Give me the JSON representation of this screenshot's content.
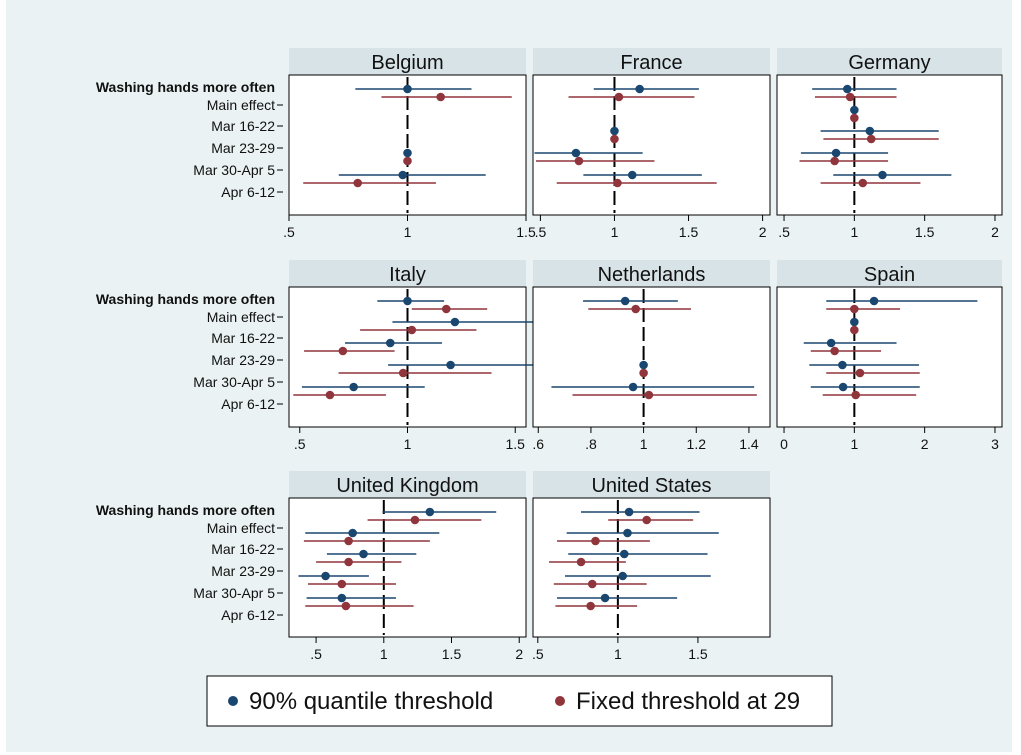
{
  "colors": {
    "background": "#eaf2f3",
    "plot_bg": "#ffffff",
    "title_bar": "#d8e3e8",
    "series_1": "#1a476f",
    "series_2": "#90353b",
    "reference_line": "#000000"
  },
  "chart_data": {
    "type": "scatter",
    "subtype": "coefficient-plot-small-multiples",
    "row_labels": [
      "Washing hands more often",
      "Main effect",
      "Mar 16-22",
      "Mar 23-29",
      "Mar 30-Apr 5",
      "Apr 6-12"
    ],
    "legend": {
      "position": "bottom",
      "entries": [
        "90% quantile threshold",
        "Fixed threshold at 29"
      ]
    },
    "panels": [
      {
        "title": "Belgium",
        "xlim": [
          0.5,
          1.5
        ],
        "ticks": [
          0.5,
          1,
          1.5
        ],
        "tick_labels": [
          ".5",
          "1",
          "1.5"
        ],
        "ref": 1,
        "series": [
          {
            "name": "90% quantile threshold",
            "points": [
              {
                "row": "Main effect",
                "est": 1.0,
                "lo": 0.78,
                "hi": 1.27
              },
              {
                "row": "Mar 16-22",
                "est": null,
                "lo": null,
                "hi": null
              },
              {
                "row": "Mar 23-29",
                "est": null,
                "lo": null,
                "hi": null
              },
              {
                "row": "Mar 30-Apr 5",
                "est": 1.0,
                "lo": 1.0,
                "hi": 1.0
              },
              {
                "row": "Apr 6-12",
                "est": 0.98,
                "lo": 0.71,
                "hi": 1.33
              }
            ]
          },
          {
            "name": "Fixed threshold at 29",
            "points": [
              {
                "row": "Main effect",
                "est": 1.14,
                "lo": 0.89,
                "hi": 1.44
              },
              {
                "row": "Mar 16-22",
                "est": null,
                "lo": null,
                "hi": null
              },
              {
                "row": "Mar 23-29",
                "est": null,
                "lo": null,
                "hi": null
              },
              {
                "row": "Mar 30-Apr 5",
                "est": 1.0,
                "lo": 1.0,
                "hi": 1.0
              },
              {
                "row": "Apr 6-12",
                "est": 0.79,
                "lo": 0.56,
                "hi": 1.12
              }
            ]
          }
        ]
      },
      {
        "title": "France",
        "xlim": [
          0.45,
          2.05
        ],
        "ticks": [
          0.5,
          1,
          1.5,
          2
        ],
        "tick_labels": [
          ".5",
          "1",
          "1.5",
          "2"
        ],
        "ref": 1,
        "series": [
          {
            "name": "90% quantile threshold",
            "points": [
              {
                "row": "Main effect",
                "est": 1.17,
                "lo": 0.86,
                "hi": 1.57
              },
              {
                "row": "Mar 16-22",
                "est": null,
                "lo": null,
                "hi": null
              },
              {
                "row": "Mar 23-29",
                "est": 1.0,
                "lo": 1.0,
                "hi": 1.0
              },
              {
                "row": "Mar 30-Apr 5",
                "est": 0.74,
                "lo": 0.46,
                "hi": 1.19
              },
              {
                "row": "Apr 6-12",
                "est": 1.12,
                "lo": 0.79,
                "hi": 1.59
              }
            ]
          },
          {
            "name": "Fixed threshold at 29",
            "points": [
              {
                "row": "Main effect",
                "est": 1.03,
                "lo": 0.69,
                "hi": 1.54
              },
              {
                "row": "Mar 16-22",
                "est": null,
                "lo": null,
                "hi": null
              },
              {
                "row": "Mar 23-29",
                "est": 1.0,
                "lo": 1.0,
                "hi": 1.0
              },
              {
                "row": "Mar 30-Apr 5",
                "est": 0.76,
                "lo": 0.47,
                "hi": 1.27
              },
              {
                "row": "Apr 6-12",
                "est": 1.02,
                "lo": 0.61,
                "hi": 1.69
              }
            ]
          }
        ]
      },
      {
        "title": "Germany",
        "xlim": [
          0.45,
          2.05
        ],
        "ticks": [
          0.5,
          1,
          1.5,
          2
        ],
        "tick_labels": [
          ".5",
          "1",
          "1.5",
          "2"
        ],
        "ref": 1,
        "series": [
          {
            "name": "90% quantile threshold",
            "points": [
              {
                "row": "Main effect",
                "est": 0.95,
                "lo": 0.7,
                "hi": 1.3
              },
              {
                "row": "Mar 16-22",
                "est": 1.0,
                "lo": 1.0,
                "hi": 1.0
              },
              {
                "row": "Mar 23-29",
                "est": 1.11,
                "lo": 0.76,
                "hi": 1.6
              },
              {
                "row": "Mar 30-Apr 5",
                "est": 0.87,
                "lo": 0.62,
                "hi": 1.24
              },
              {
                "row": "Apr 6-12",
                "est": 1.2,
                "lo": 0.85,
                "hi": 1.69
              }
            ]
          },
          {
            "name": "Fixed threshold at 29",
            "points": [
              {
                "row": "Main effect",
                "est": 0.97,
                "lo": 0.72,
                "hi": 1.3
              },
              {
                "row": "Mar 16-22",
                "est": 1.0,
                "lo": 1.0,
                "hi": 1.0
              },
              {
                "row": "Mar 23-29",
                "est": 1.12,
                "lo": 0.78,
                "hi": 1.6
              },
              {
                "row": "Mar 30-Apr 5",
                "est": 0.86,
                "lo": 0.61,
                "hi": 1.24
              },
              {
                "row": "Apr 6-12",
                "est": 1.06,
                "lo": 0.76,
                "hi": 1.47
              }
            ]
          }
        ]
      },
      {
        "title": "Italy",
        "xlim": [
          0.45,
          1.55
        ],
        "ticks": [
          0.5,
          1,
          1.5
        ],
        "tick_labels": [
          ".5",
          "1",
          "1.5"
        ],
        "ref": 1,
        "series": [
          {
            "name": "90% quantile threshold",
            "points": [
              {
                "row": "Main effect",
                "est": 1.0,
                "lo": 0.86,
                "hi": 1.17
              },
              {
                "row": "Mar 16-22",
                "est": 1.22,
                "lo": 0.93,
                "hi": 1.61
              },
              {
                "row": "Mar 23-29",
                "est": 0.92,
                "lo": 0.71,
                "hi": 1.16
              },
              {
                "row": "Mar 30-Apr 5",
                "est": 1.2,
                "lo": 0.91,
                "hi": 1.6
              },
              {
                "row": "Apr 6-12",
                "est": 0.75,
                "lo": 0.51,
                "hi": 1.08
              }
            ]
          },
          {
            "name": "Fixed threshold at 29",
            "points": [
              {
                "row": "Main effect",
                "est": 1.18,
                "lo": 1.02,
                "hi": 1.37
              },
              {
                "row": "Mar 16-22",
                "est": 1.02,
                "lo": 0.78,
                "hi": 1.32
              },
              {
                "row": "Mar 23-29",
                "est": 0.7,
                "lo": 0.52,
                "hi": 0.94
              },
              {
                "row": "Mar 30-Apr 5",
                "est": 0.98,
                "lo": 0.68,
                "hi": 1.39
              },
              {
                "row": "Apr 6-12",
                "est": 0.64,
                "lo": 0.47,
                "hi": 0.9
              }
            ]
          }
        ]
      },
      {
        "title": "Netherlands",
        "xlim": [
          0.58,
          1.48
        ],
        "ticks": [
          0.6,
          0.8,
          1,
          1.2,
          1.4
        ],
        "tick_labels": [
          ".6",
          ".8",
          "1",
          "1.2",
          "1.4"
        ],
        "ref": 1,
        "series": [
          {
            "name": "90% quantile threshold",
            "points": [
              {
                "row": "Main effect",
                "est": 0.93,
                "lo": 0.77,
                "hi": 1.13
              },
              {
                "row": "Mar 16-22",
                "est": null,
                "lo": null,
                "hi": null
              },
              {
                "row": "Mar 23-29",
                "est": null,
                "lo": null,
                "hi": null
              },
              {
                "row": "Mar 30-Apr 5",
                "est": 1.0,
                "lo": 1.0,
                "hi": 1.0
              },
              {
                "row": "Apr 6-12",
                "est": 0.96,
                "lo": 0.65,
                "hi": 1.42
              }
            ]
          },
          {
            "name": "Fixed threshold at 29",
            "points": [
              {
                "row": "Main effect",
                "est": 0.97,
                "lo": 0.79,
                "hi": 1.18
              },
              {
                "row": "Mar 16-22",
                "est": null,
                "lo": null,
                "hi": null
              },
              {
                "row": "Mar 23-29",
                "est": null,
                "lo": null,
                "hi": null
              },
              {
                "row": "Mar 30-Apr 5",
                "est": 1.0,
                "lo": 1.0,
                "hi": 1.0
              },
              {
                "row": "Apr 6-12",
                "est": 1.02,
                "lo": 0.73,
                "hi": 1.43
              }
            ]
          }
        ]
      },
      {
        "title": "Spain",
        "xlim": [
          -0.1,
          3.1
        ],
        "ticks": [
          0,
          1,
          2,
          3
        ],
        "tick_labels": [
          "0",
          "1",
          "2",
          "3"
        ],
        "ref": 1,
        "series": [
          {
            "name": "90% quantile threshold",
            "points": [
              {
                "row": "Main effect",
                "est": 1.28,
                "lo": 0.6,
                "hi": 2.75
              },
              {
                "row": "Mar 16-22",
                "est": 1.0,
                "lo": 1.0,
                "hi": 1.0
              },
              {
                "row": "Mar 23-29",
                "est": 0.67,
                "lo": 0.28,
                "hi": 1.6
              },
              {
                "row": "Mar 30-Apr 5",
                "est": 0.83,
                "lo": 0.36,
                "hi": 1.92
              },
              {
                "row": "Apr 6-12",
                "est": 0.84,
                "lo": 0.38,
                "hi": 1.93
              }
            ]
          },
          {
            "name": "Fixed threshold at 29",
            "points": [
              {
                "row": "Main effect",
                "est": 1.0,
                "lo": 0.6,
                "hi": 1.65
              },
              {
                "row": "Mar 16-22",
                "est": 1.0,
                "lo": 1.0,
                "hi": 1.0
              },
              {
                "row": "Mar 23-29",
                "est": 0.72,
                "lo": 0.38,
                "hi": 1.38
              },
              {
                "row": "Mar 30-Apr 5",
                "est": 1.08,
                "lo": 0.6,
                "hi": 1.93
              },
              {
                "row": "Apr 6-12",
                "est": 1.02,
                "lo": 0.55,
                "hi": 1.88
              }
            ]
          }
        ]
      },
      {
        "title": "United Kingdom",
        "xlim": [
          0.3,
          2.05
        ],
        "ticks": [
          0.5,
          1,
          1.5,
          2
        ],
        "tick_labels": [
          ".5",
          "1",
          "1.5",
          "2"
        ],
        "ref": 1,
        "series": [
          {
            "name": "90% quantile threshold",
            "points": [
              {
                "row": "Main effect",
                "est": 1.34,
                "lo": 0.99,
                "hi": 1.83
              },
              {
                "row": "Mar 16-22",
                "est": 0.77,
                "lo": 0.42,
                "hi": 1.41
              },
              {
                "row": "Mar 23-29",
                "est": 0.85,
                "lo": 0.58,
                "hi": 1.24
              },
              {
                "row": "Mar 30-Apr 5",
                "est": 0.57,
                "lo": 0.37,
                "hi": 0.89
              },
              {
                "row": "Apr 6-12",
                "est": 0.69,
                "lo": 0.43,
                "hi": 1.09
              }
            ]
          },
          {
            "name": "Fixed threshold at 29",
            "points": [
              {
                "row": "Main effect",
                "est": 1.23,
                "lo": 0.88,
                "hi": 1.72
              },
              {
                "row": "Mar 16-22",
                "est": 0.74,
                "lo": 0.41,
                "hi": 1.34
              },
              {
                "row": "Mar 23-29",
                "est": 0.74,
                "lo": 0.5,
                "hi": 1.13
              },
              {
                "row": "Mar 30-Apr 5",
                "est": 0.69,
                "lo": 0.44,
                "hi": 1.09
              },
              {
                "row": "Apr 6-12",
                "est": 0.72,
                "lo": 0.42,
                "hi": 1.22
              }
            ]
          }
        ]
      },
      {
        "title": "United States",
        "xlim": [
          0.47,
          1.95
        ],
        "ticks": [
          0.5,
          1,
          1.5
        ],
        "tick_labels": [
          ".5",
          "1",
          "1.5"
        ],
        "ref": 1,
        "series": [
          {
            "name": "90% quantile threshold",
            "points": [
              {
                "row": "Main effect",
                "est": 1.07,
                "lo": 0.77,
                "hi": 1.51
              },
              {
                "row": "Mar 16-22",
                "est": 1.06,
                "lo": 0.68,
                "hi": 1.63
              },
              {
                "row": "Mar 23-29",
                "est": 1.04,
                "lo": 0.69,
                "hi": 1.56
              },
              {
                "row": "Mar 30-Apr 5",
                "est": 1.03,
                "lo": 0.67,
                "hi": 1.58
              },
              {
                "row": "Apr 6-12",
                "est": 0.92,
                "lo": 0.62,
                "hi": 1.37
              }
            ]
          },
          {
            "name": "Fixed threshold at 29",
            "points": [
              {
                "row": "Main effect",
                "est": 1.18,
                "lo": 0.94,
                "hi": 1.47
              },
              {
                "row": "Mar 16-22",
                "est": 0.86,
                "lo": 0.62,
                "hi": 1.2
              },
              {
                "row": "Mar 23-29",
                "est": 0.77,
                "lo": 0.57,
                "hi": 1.05
              },
              {
                "row": "Mar 30-Apr 5",
                "est": 0.84,
                "lo": 0.6,
                "hi": 1.18
              },
              {
                "row": "Apr 6-12",
                "est": 0.83,
                "lo": 0.61,
                "hi": 1.12
              }
            ]
          }
        ]
      }
    ]
  }
}
